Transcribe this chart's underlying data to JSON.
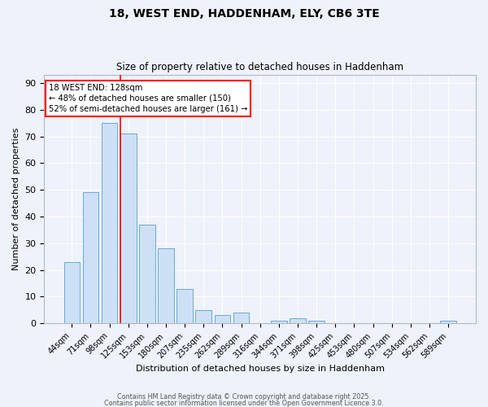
{
  "title1": "18, WEST END, HADDENHAM, ELY, CB6 3TE",
  "title2": "Size of property relative to detached houses in Haddenham",
  "xlabel": "Distribution of detached houses by size in Haddenham",
  "ylabel": "Number of detached properties",
  "categories": [
    "44sqm",
    "71sqm",
    "98sqm",
    "125sqm",
    "153sqm",
    "180sqm",
    "207sqm",
    "235sqm",
    "262sqm",
    "289sqm",
    "316sqm",
    "344sqm",
    "371sqm",
    "398sqm",
    "425sqm",
    "453sqm",
    "480sqm",
    "507sqm",
    "534sqm",
    "562sqm",
    "589sqm"
  ],
  "values": [
    23,
    49,
    75,
    71,
    37,
    28,
    13,
    5,
    3,
    4,
    0,
    1,
    2,
    1,
    0,
    0,
    0,
    0,
    0,
    0,
    1
  ],
  "bar_color": "#cde0f5",
  "bar_edge_color": "#6aaad4",
  "annotation_title": "18 WEST END: 128sqm",
  "annotation_line1": "← 48% of detached houses are smaller (150)",
  "annotation_line2": "52% of semi-detached houses are larger (161) →",
  "footer1": "Contains HM Land Registry data © Crown copyright and database right 2025.",
  "footer2": "Contains public sector information licensed under the Open Government Licence 3.0.",
  "background_color": "#eef2fa",
  "ylim": [
    0,
    93
  ],
  "yticks": [
    0,
    10,
    20,
    30,
    40,
    50,
    60,
    70,
    80,
    90
  ],
  "red_line_index": 2.5
}
